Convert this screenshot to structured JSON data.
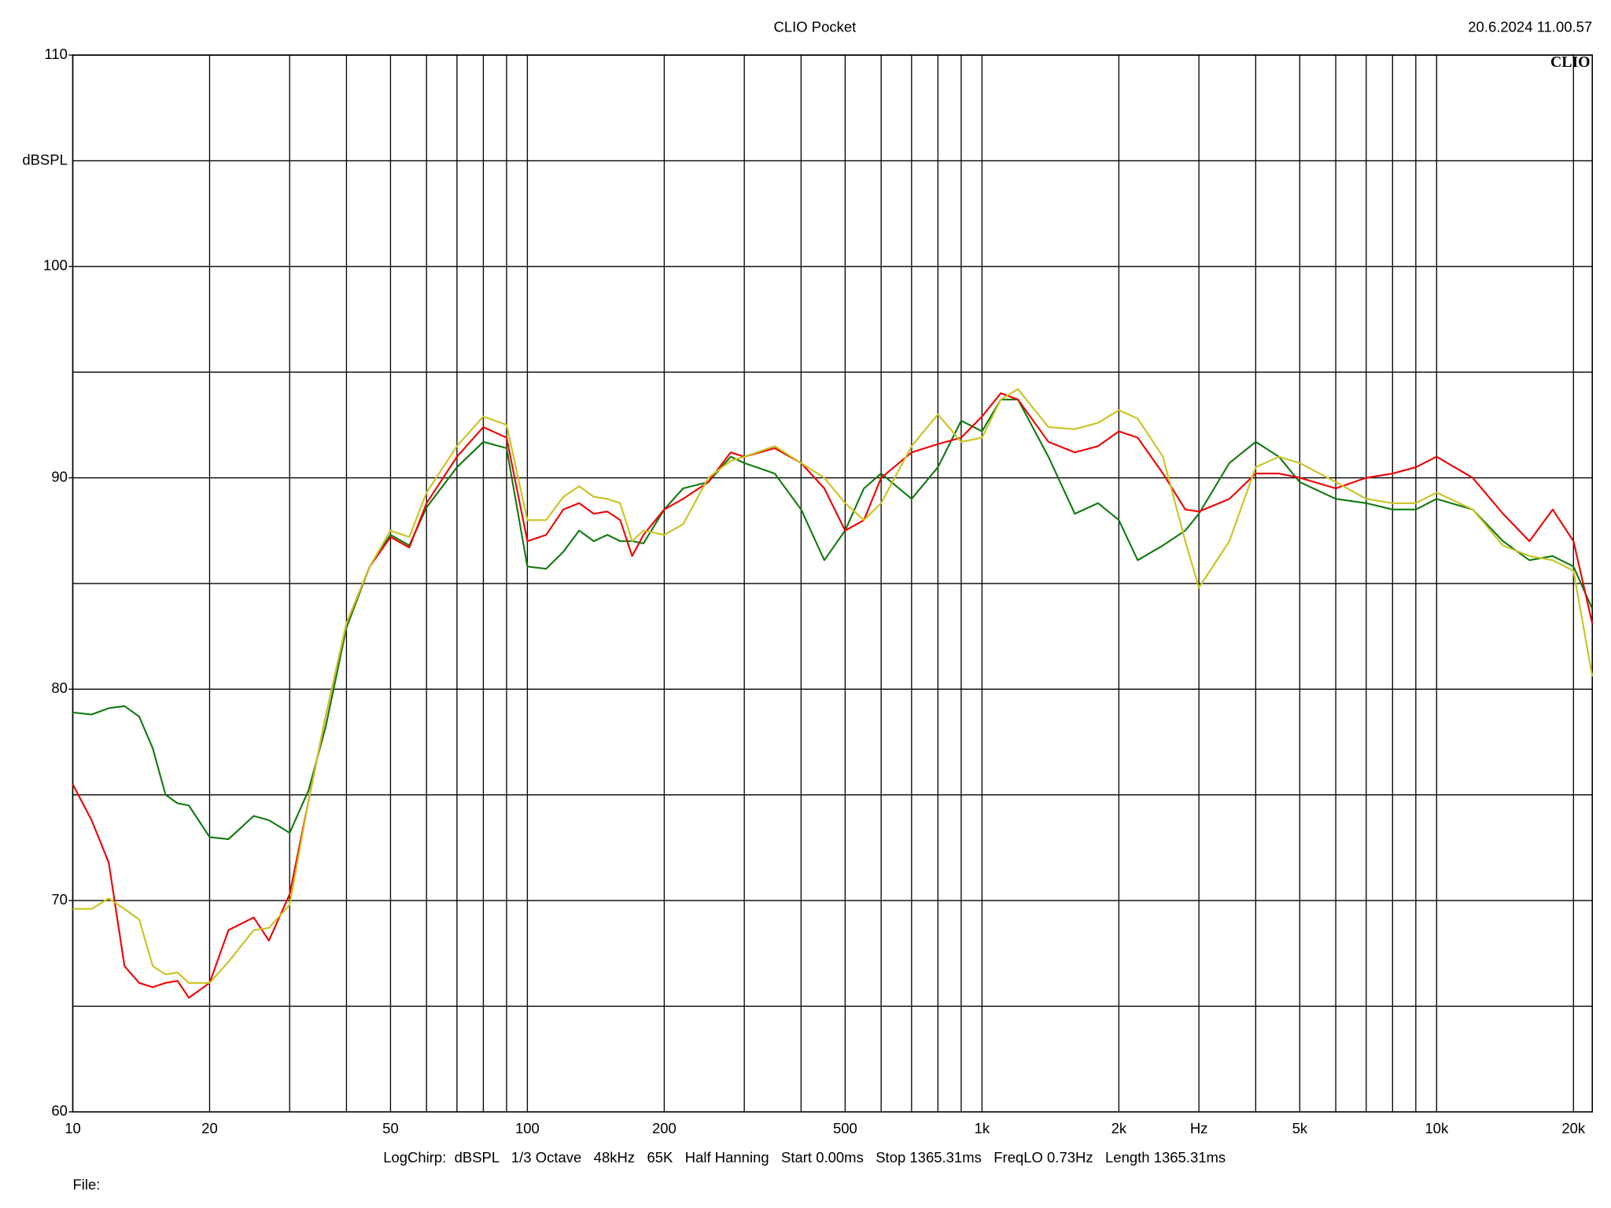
{
  "chart_data": {
    "type": "line",
    "title": "CLIO Pocket",
    "timestamp": "20.6.2024 11.00.57",
    "logo": "CLIO",
    "y_label": "dBSPL",
    "footer": "LogChirp:  dBSPL   1/3 Octave   48kHz   65K   Half Hanning   Start 0.00ms   Stop 1365.31ms   FreqLO 0.73Hz   Length 1365.31ms",
    "file_label": "File:",
    "xscale": "log",
    "grid": true,
    "xlim": [
      10,
      22000
    ],
    "ylim": [
      60,
      110
    ],
    "xticks": [
      10,
      20,
      50,
      100,
      200,
      500,
      {
        "value": 1000,
        "label": "1k"
      },
      {
        "value": 2000,
        "label": "2k"
      },
      {
        "value": 3000,
        "label": "Hz"
      },
      {
        "value": 5000,
        "label": "5k"
      },
      {
        "value": 10000,
        "label": "10k"
      },
      {
        "value": 20000,
        "label": "20k"
      }
    ],
    "xgrid": [
      30,
      40,
      60,
      70,
      80,
      90,
      300,
      400,
      600,
      700,
      800,
      900,
      4000,
      6000,
      7000,
      8000,
      9000
    ],
    "yticks": [
      60,
      70,
      80,
      90,
      100,
      110
    ],
    "ygrid": [
      65,
      75,
      85,
      95,
      105
    ],
    "x": [
      10,
      11,
      12,
      13,
      14,
      15,
      16,
      17,
      18,
      20,
      22,
      25,
      27,
      30,
      33,
      36,
      40,
      45,
      50,
      55,
      60,
      70,
      80,
      90,
      100,
      110,
      120,
      130,
      140,
      150,
      160,
      170,
      180,
      200,
      220,
      250,
      280,
      300,
      350,
      400,
      450,
      500,
      550,
      600,
      700,
      800,
      900,
      1000,
      1100,
      1200,
      1400,
      1600,
      1800,
      2000,
      2200,
      2500,
      2800,
      3000,
      3500,
      4000,
      4500,
      5000,
      6000,
      7000,
      8000,
      9000,
      10000,
      12000,
      14000,
      16000,
      18000,
      20000,
      22000
    ],
    "series": [
      {
        "color": "#107a10",
        "values": [
          78.9,
          78.8,
          79.1,
          79.2,
          78.7,
          77.2,
          75.0,
          74.6,
          74.5,
          73.0,
          72.9,
          74.0,
          73.8,
          73.2,
          75.2,
          78.2,
          82.9,
          85.8,
          87.3,
          86.8,
          88.6,
          90.5,
          91.7,
          91.4,
          85.8,
          85.7,
          86.5,
          87.5,
          87.0,
          87.3,
          87.0,
          87.0,
          86.9,
          88.5,
          89.5,
          89.8,
          91.0,
          90.7,
          90.2,
          88.5,
          86.1,
          87.5,
          89.5,
          90.2,
          89.0,
          90.5,
          92.7,
          92.2,
          93.7,
          93.7,
          91.0,
          88.3,
          88.8,
          88.0,
          86.1,
          86.8,
          87.5,
          88.3,
          90.7,
          91.7,
          91.0,
          89.8,
          89.0,
          88.8,
          88.5,
          88.5,
          89.0,
          88.5,
          87.0,
          86.1,
          86.3,
          85.8,
          83.8
        ]
      },
      {
        "color": "#f00000",
        "values": [
          75.5,
          73.8,
          71.8,
          66.9,
          66.1,
          65.9,
          66.1,
          66.2,
          65.4,
          66.1,
          68.6,
          69.2,
          68.1,
          70.3,
          74.7,
          78.7,
          83.1,
          85.8,
          87.2,
          86.7,
          88.8,
          91.0,
          92.4,
          91.9,
          87.0,
          87.3,
          88.5,
          88.8,
          88.3,
          88.4,
          88.0,
          86.3,
          87.3,
          88.5,
          89.0,
          89.8,
          91.2,
          91.0,
          91.4,
          90.7,
          89.5,
          87.5,
          88.0,
          90.0,
          91.2,
          91.6,
          91.9,
          92.9,
          94.0,
          93.7,
          91.7,
          91.2,
          91.5,
          92.2,
          91.9,
          90.2,
          88.5,
          88.4,
          89.0,
          90.2,
          90.2,
          90.0,
          89.5,
          90.0,
          90.2,
          90.5,
          91.0,
          90.0,
          88.3,
          87.0,
          88.5,
          87.0,
          83.1
        ]
      },
      {
        "color": "#c8c420",
        "values": [
          69.6,
          69.6,
          70.1,
          69.6,
          69.1,
          66.9,
          66.5,
          66.6,
          66.1,
          66.1,
          67.1,
          68.6,
          68.7,
          69.8,
          74.7,
          78.7,
          83.1,
          85.8,
          87.5,
          87.2,
          89.3,
          91.5,
          92.9,
          92.5,
          88.0,
          88.0,
          89.1,
          89.6,
          89.1,
          89.0,
          88.8,
          87.0,
          87.5,
          87.3,
          87.8,
          90.0,
          90.8,
          91.0,
          91.5,
          90.7,
          90.0,
          88.8,
          88.0,
          88.8,
          91.5,
          93.0,
          91.7,
          91.9,
          93.7,
          94.2,
          92.4,
          92.3,
          92.6,
          93.2,
          92.8,
          91.0,
          87.0,
          84.8,
          87.0,
          90.5,
          91.0,
          90.7,
          89.8,
          89.0,
          88.8,
          88.8,
          89.3,
          88.5,
          86.8,
          86.3,
          86.1,
          85.6,
          80.6
        ]
      }
    ]
  }
}
